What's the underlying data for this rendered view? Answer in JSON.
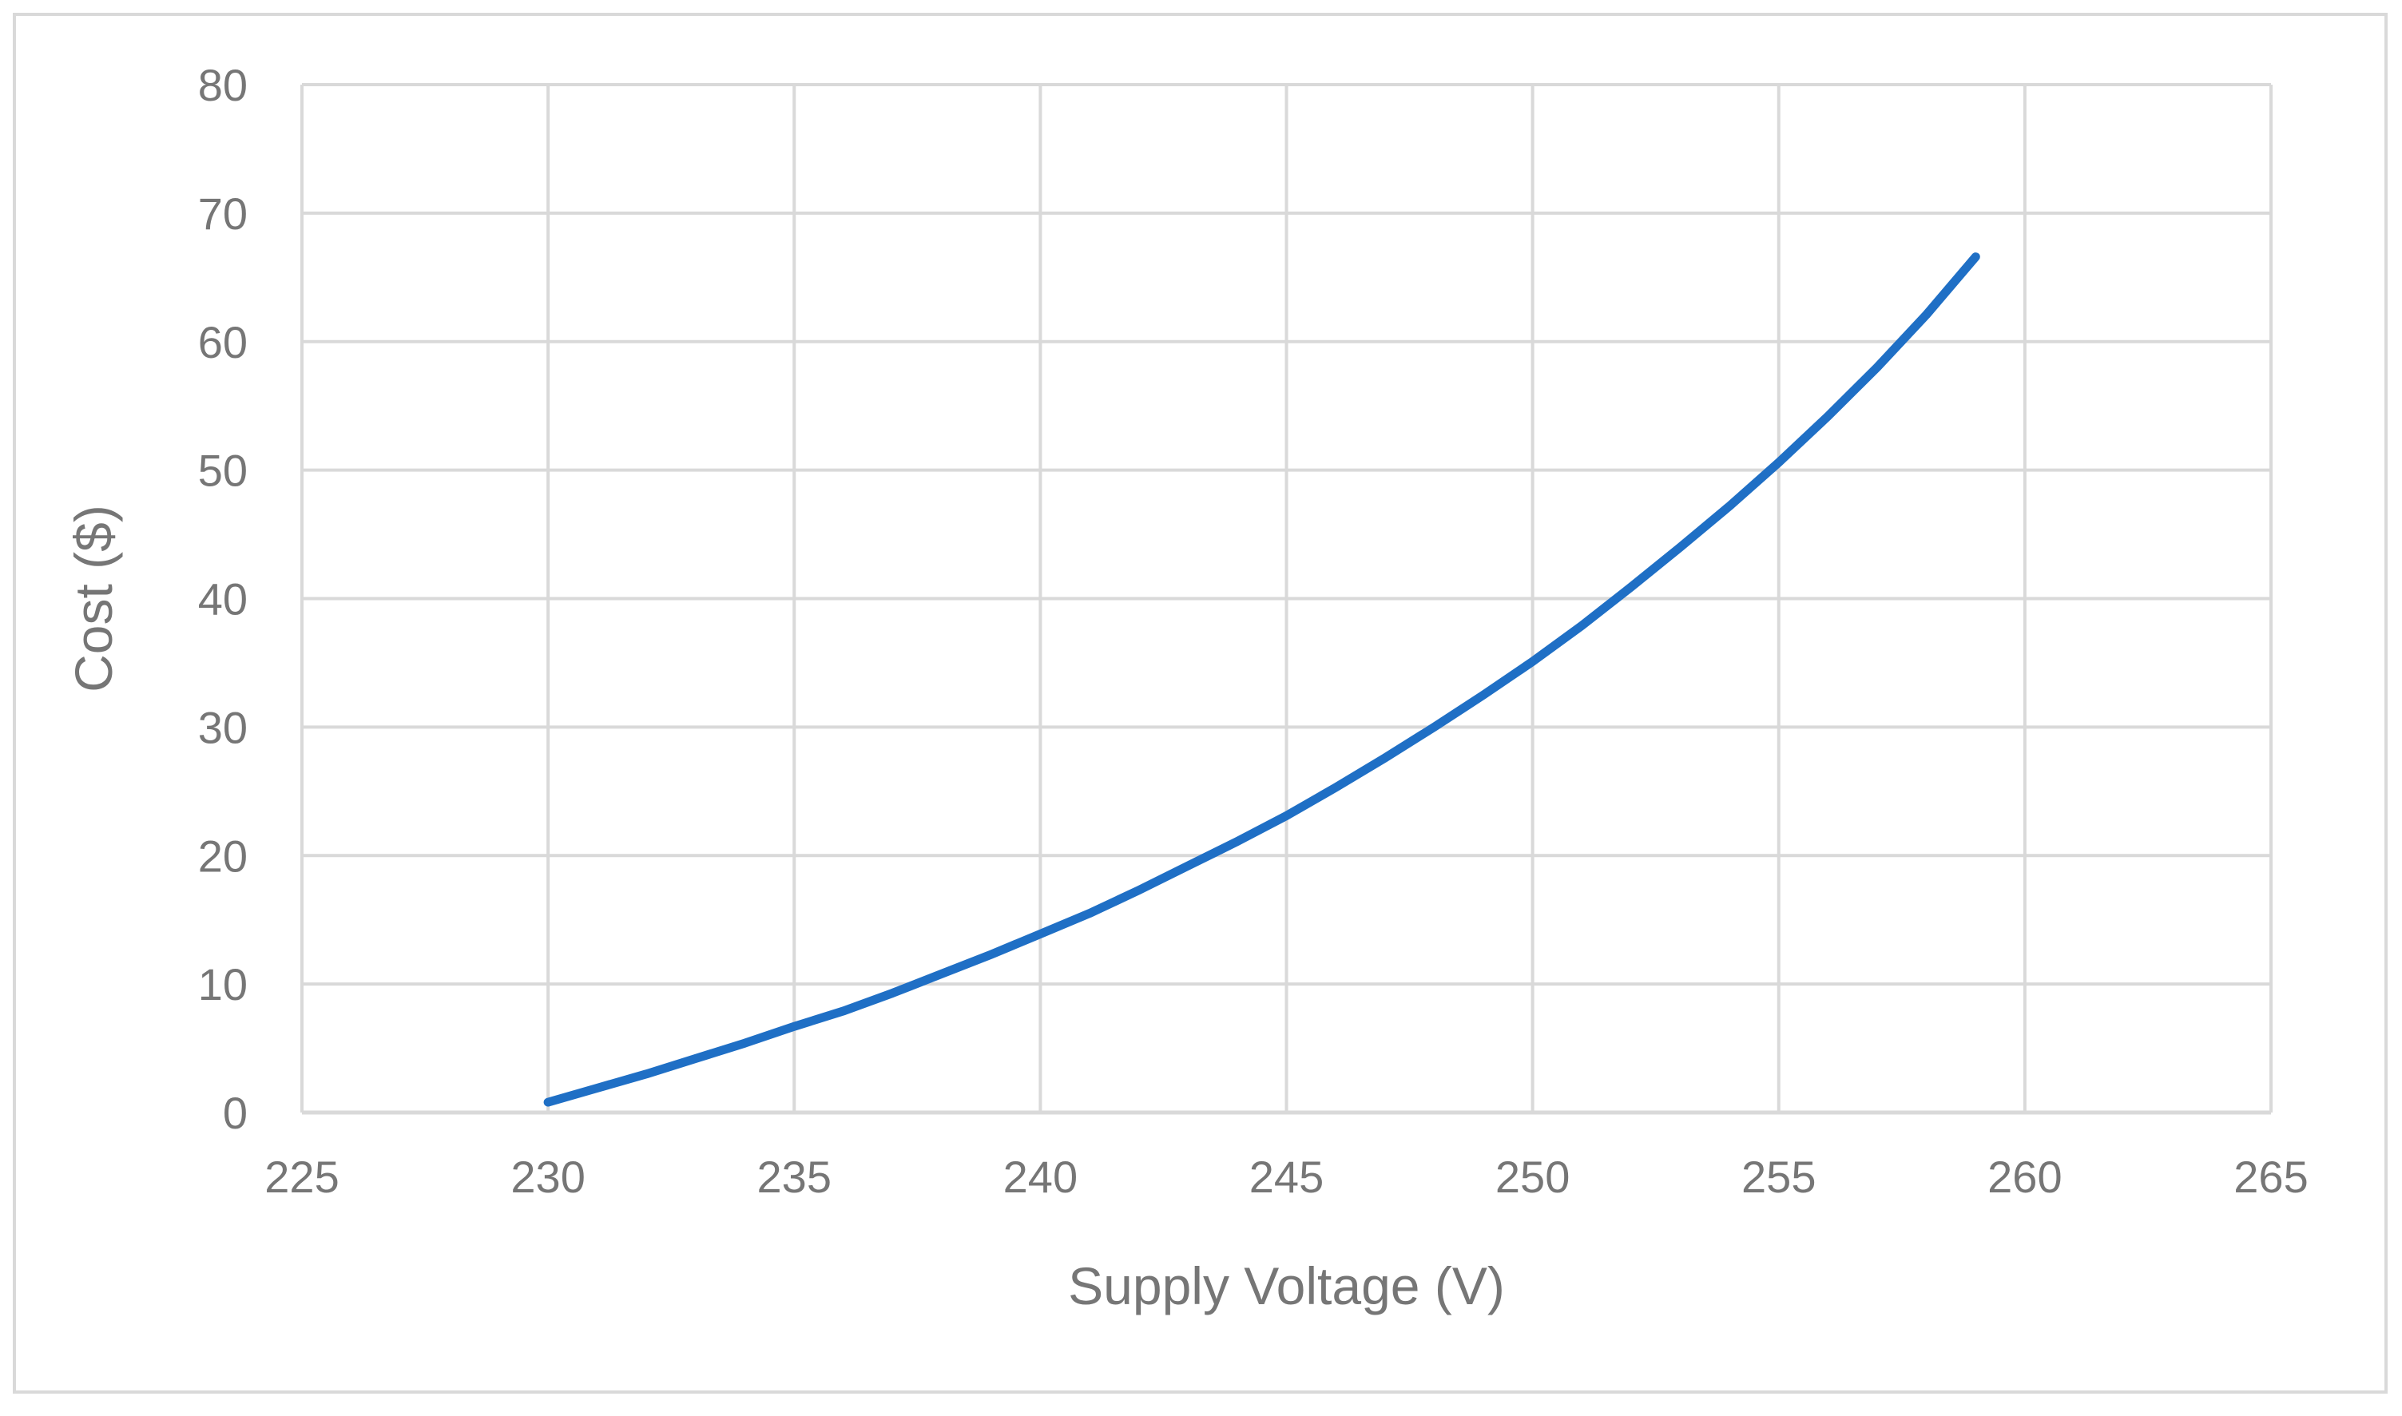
{
  "chart_data": {
    "type": "line",
    "title": "",
    "xlabel": "Supply Voltage (V)",
    "ylabel": "Cost ($)",
    "xlim": [
      225,
      265
    ],
    "ylim": [
      0,
      80
    ],
    "x_ticks": [
      225,
      230,
      235,
      240,
      245,
      250,
      255,
      260,
      265
    ],
    "y_ticks": [
      0,
      10,
      20,
      30,
      40,
      50,
      60,
      70,
      80
    ],
    "grid": true,
    "legend": "none",
    "series": [
      {
        "color": "#1f6fc5",
        "x": [
          230,
          231,
          232,
          233,
          234,
          235,
          236,
          237,
          238,
          239,
          240,
          241,
          242,
          243,
          244,
          245,
          246,
          247,
          248,
          249,
          250,
          251,
          252,
          253,
          254,
          255,
          256,
          257,
          258,
          259
        ],
        "y": [
          0.8,
          1.9,
          3.0,
          4.2,
          5.4,
          6.7,
          7.9,
          9.3,
          10.8,
          12.3,
          13.9,
          15.5,
          17.3,
          19.2,
          21.1,
          23.1,
          25.3,
          27.6,
          30.0,
          32.5,
          35.1,
          37.9,
          40.9,
          44.0,
          47.2,
          50.6,
          54.2,
          58.0,
          62.1,
          66.6
        ]
      }
    ]
  }
}
